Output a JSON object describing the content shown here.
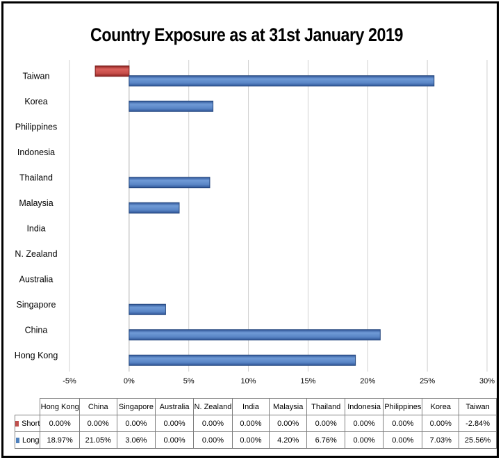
{
  "chart_data": {
    "type": "bar",
    "orientation": "horizontal",
    "title": "Country Exposure as at 31st January 2019",
    "categories": [
      "Hong Kong",
      "China",
      "Singapore",
      "Australia",
      "N. Zealand",
      "India",
      "Malaysia",
      "Thailand",
      "Indonesia",
      "Philippines",
      "Korea",
      "Taiwan"
    ],
    "series": [
      {
        "name": "Short",
        "values": [
          0,
          0,
          0,
          0,
          0,
          0,
          0,
          0,
          0,
          0,
          0,
          -2.84
        ],
        "labels": [
          "0.00%",
          "0.00%",
          "0.00%",
          "0.00%",
          "0.00%",
          "0.00%",
          "0.00%",
          "0.00%",
          "0.00%",
          "0.00%",
          "0.00%",
          "-2.84%"
        ],
        "color": "#c0504d"
      },
      {
        "name": "Long",
        "values": [
          18.97,
          21.05,
          3.06,
          0,
          0,
          0,
          4.2,
          6.76,
          0,
          0,
          7.03,
          25.56
        ],
        "labels": [
          "18.97%",
          "21.05%",
          "3.06%",
          "0.00%",
          "0.00%",
          "0.00%",
          "4.20%",
          "6.76%",
          "0.00%",
          "0.00%",
          "7.03%",
          "25.56%"
        ],
        "color": "#4f81bd"
      }
    ],
    "xlim": [
      -5,
      30
    ],
    "xticks": [
      -5,
      0,
      5,
      10,
      15,
      20,
      25,
      30
    ],
    "xtick_labels": [
      "-5%",
      "0%",
      "5%",
      "10%",
      "15%",
      "20%",
      "25%",
      "30%"
    ],
    "grid": "vertical",
    "legend": "data-table"
  }
}
